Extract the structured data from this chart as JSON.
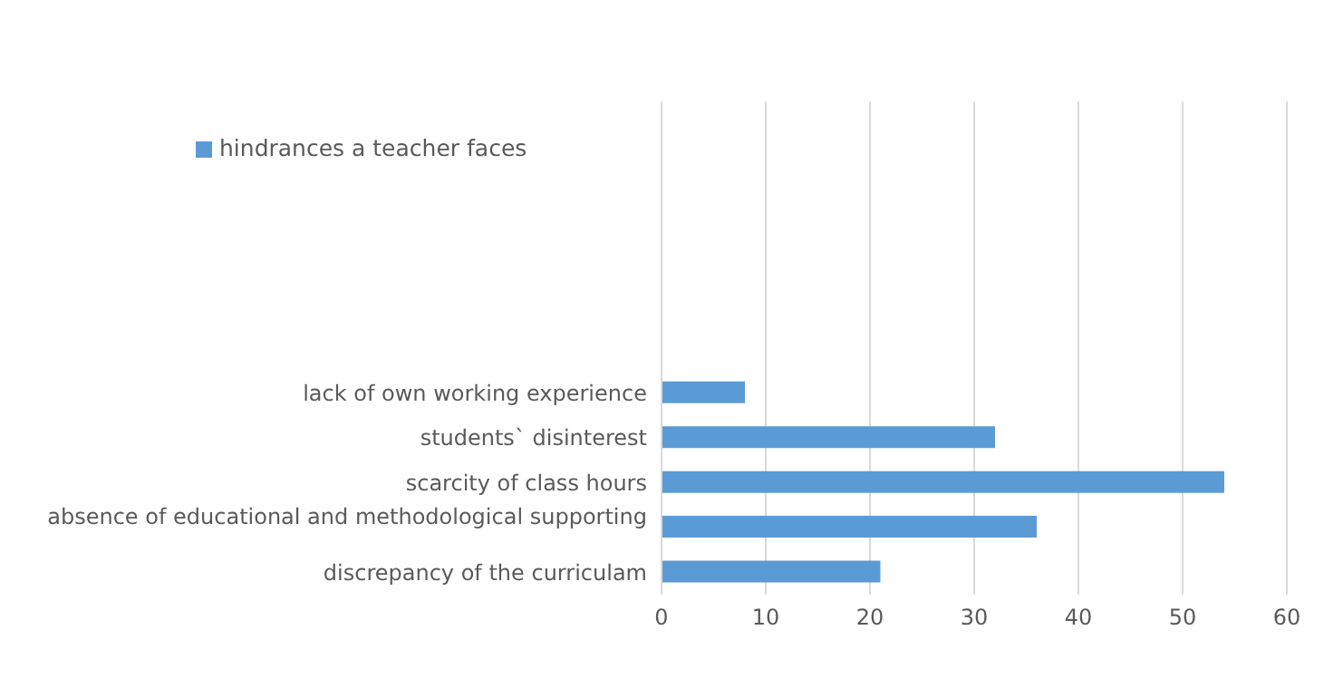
{
  "chart_data": {
    "type": "bar",
    "orientation": "horizontal",
    "categories": [
      null,
      null,
      null,
      null,
      null,
      null,
      "lack of own working experience",
      "students` disinterest",
      "scarcity of class hours",
      "absence of educational and methodological supporting ",
      "discrepancy of the curriculam"
    ],
    "series": [
      {
        "name": "hindrances a teacher faces",
        "color": "#5b9bd5",
        "values": [
          null,
          null,
          null,
          null,
          null,
          null,
          8,
          32,
          54,
          36,
          21
        ]
      }
    ],
    "xlim": [
      0,
      60
    ],
    "xticks": [
      0,
      10,
      20,
      30,
      40,
      50,
      60
    ],
    "grid": "x",
    "legend": "top left"
  }
}
